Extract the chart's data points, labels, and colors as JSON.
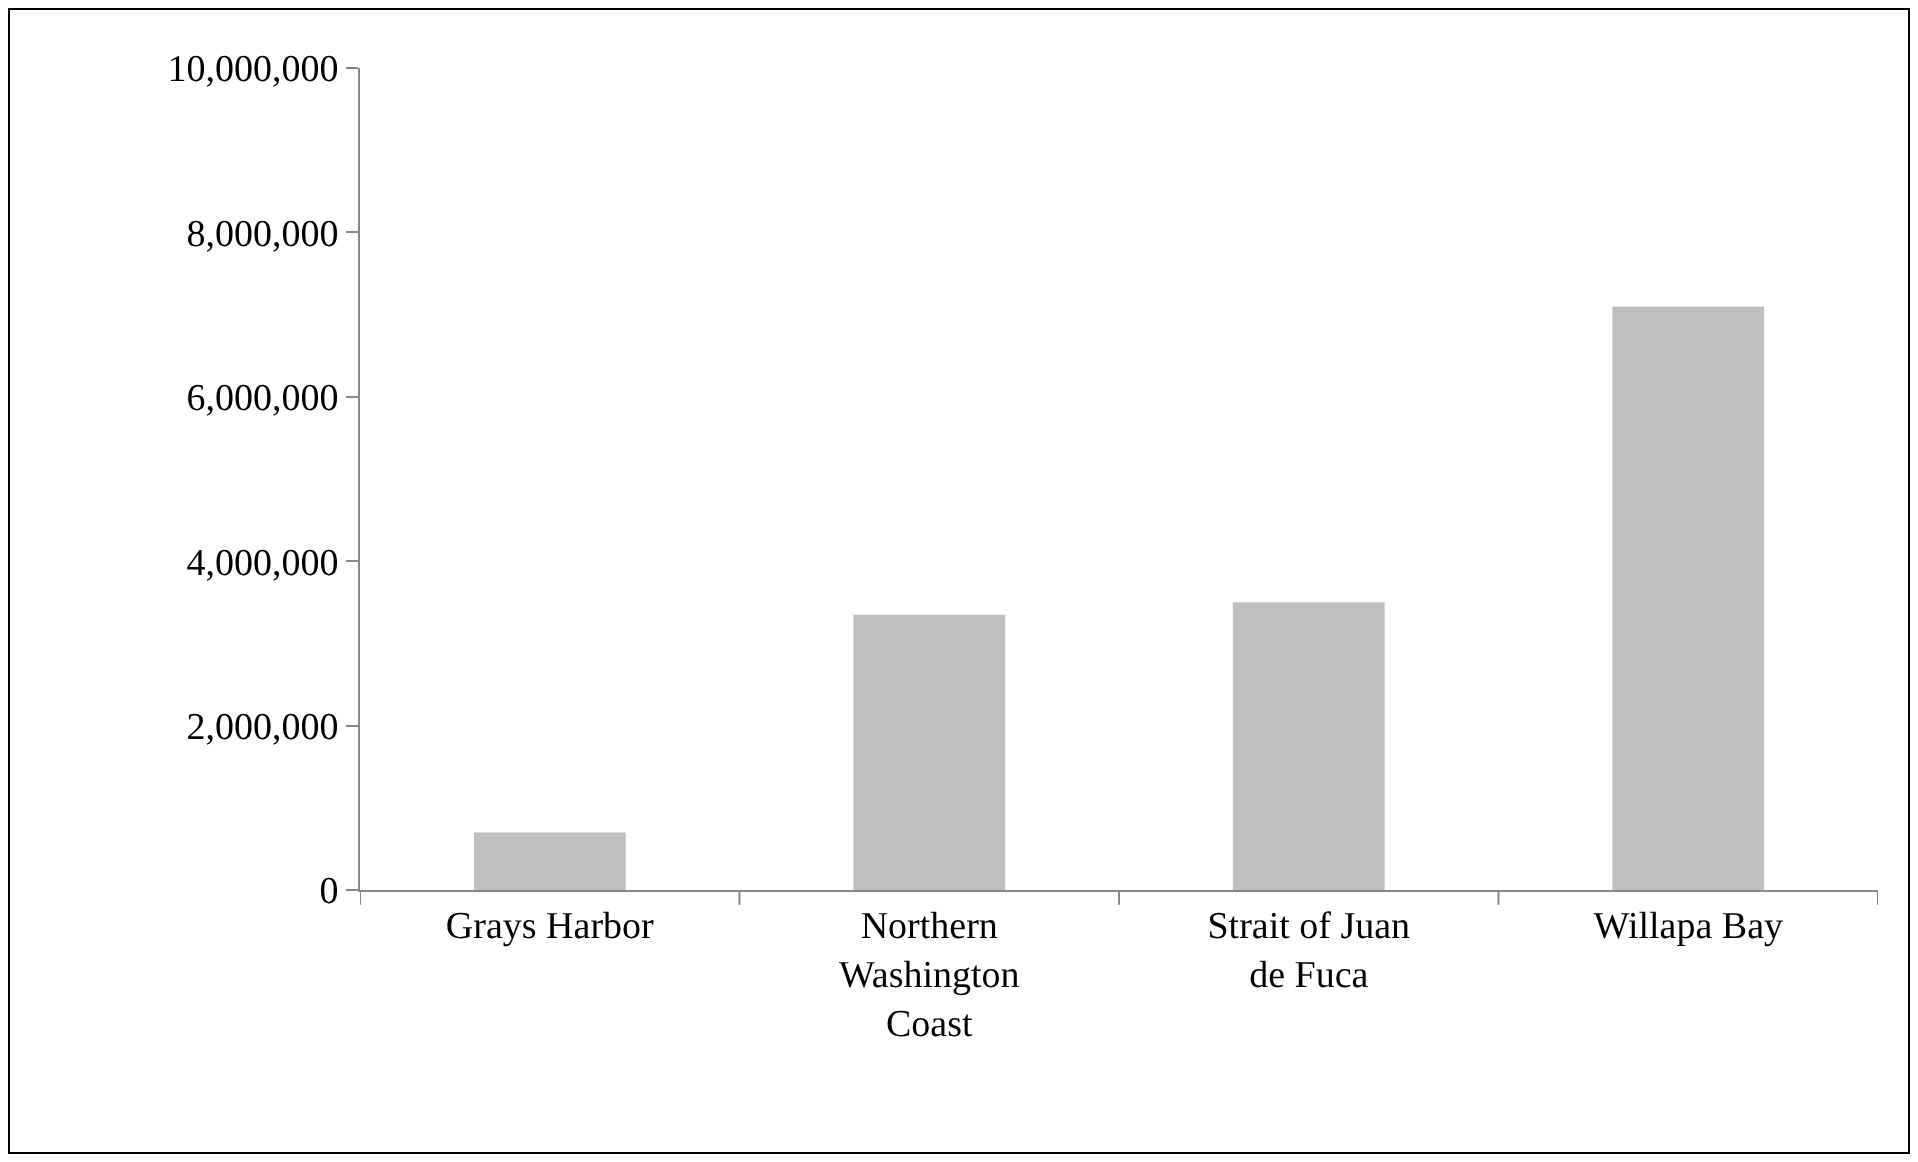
{
  "chart_data": {
    "type": "bar",
    "categories": [
      "Grays Harbor",
      "Northern Washington Coast",
      "Strait of Juan de Fuca",
      "Willapa Bay"
    ],
    "values": [
      700000,
      3350000,
      3500000,
      7100000
    ],
    "color": "#bfbfbf",
    "ylim": [
      0,
      10000000
    ],
    "yticks": [
      0,
      {
        "value": 2000000,
        "label": "2,000,000"
      },
      {
        "value": 4000000,
        "label": "4,000,000"
      },
      {
        "value": 6000000,
        "label": "6,000,000"
      },
      {
        "value": 8000000,
        "label": "8,000,000"
      },
      {
        "value": 10000000,
        "label": "10,000,000"
      }
    ],
    "grid": false,
    "legend": false
  }
}
